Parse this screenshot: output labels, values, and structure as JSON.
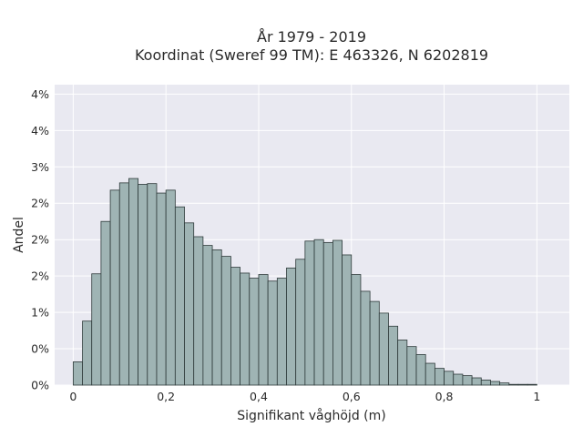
{
  "chart_data": {
    "type": "bar",
    "title_line1": "År 1979 - 2019",
    "title_line2": "Koordinat (Sweref 99 TM): E 463326, N 6202819",
    "xlabel": "Signifikant våghöjd (m)",
    "ylabel": "Andel",
    "xlim": [
      -0.04,
      1.07
    ],
    "ylim": [
      0,
      4.13
    ],
    "x_ticks": [
      {
        "value": 0,
        "label": "0"
      },
      {
        "value": 0.2,
        "label": "0,2"
      },
      {
        "value": 0.4,
        "label": "0,4"
      },
      {
        "value": 0.6,
        "label": "0,6"
      },
      {
        "value": 0.8,
        "label": "0,8"
      },
      {
        "value": 1.0,
        "label": "1"
      }
    ],
    "y_ticks": [
      {
        "value": 0,
        "label": "0%"
      },
      {
        "value": 0.5,
        "label": "0%"
      },
      {
        "value": 1.0,
        "label": "1%"
      },
      {
        "value": 1.5,
        "label": "2%"
      },
      {
        "value": 2.0,
        "label": "2%"
      },
      {
        "value": 2.5,
        "label": "2%"
      },
      {
        "value": 3.0,
        "label": "3%"
      },
      {
        "value": 3.5,
        "label": "4%"
      },
      {
        "value": 4.0,
        "label": "4%"
      }
    ],
    "bin_start": 0.01,
    "bin_width": 0.02,
    "values": [
      0.32,
      0.88,
      1.53,
      2.25,
      2.68,
      2.78,
      2.84,
      2.76,
      2.77,
      2.64,
      2.68,
      2.45,
      2.23,
      2.04,
      1.92,
      1.86,
      1.77,
      1.62,
      1.54,
      1.47,
      1.52,
      1.43,
      1.47,
      1.61,
      1.73,
      1.98,
      2.0,
      1.96,
      1.99,
      1.79,
      1.52,
      1.29,
      1.15,
      0.99,
      0.81,
      0.62,
      0.53,
      0.42,
      0.3,
      0.23,
      0.19,
      0.15,
      0.13,
      0.1,
      0.07,
      0.05,
      0.03,
      0.01,
      0.01,
      0.01
    ],
    "grid": true,
    "legend": "none",
    "colors": {
      "bar_fill": "#9fb4b4",
      "bar_stroke": "#2e3a3a",
      "plot_background": "#e9e9f1",
      "grid": "#ffffff"
    }
  }
}
